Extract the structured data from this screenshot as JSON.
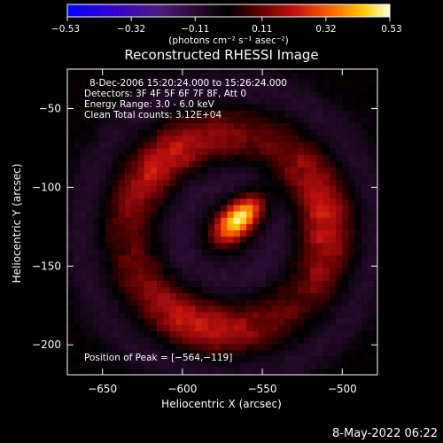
{
  "chart_data": {
    "type": "heatmap",
    "title": "Reconstructed RHESSI Image",
    "xlabel": "Heliocentric X (arcsec)",
    "ylabel": "Heliocentric Y (arcsec)",
    "xlim": [
      -672,
      -478
    ],
    "ylim": [
      -219,
      -25
    ],
    "x_ticks": [
      -650,
      -600,
      -550,
      -500
    ],
    "y_ticks": [
      -50,
      -100,
      -150,
      -200
    ],
    "x_tick_labels": [
      "−650",
      "−600",
      "−550",
      "−500"
    ],
    "y_tick_labels": [
      "−50",
      "−100",
      "−150",
      "−200"
    ],
    "colorbar": {
      "min": -0.53,
      "max": 0.53,
      "ticks": [
        -0.53,
        -0.32,
        -0.11,
        0.11,
        0.32,
        0.53
      ],
      "tick_labels": [
        "−0.53",
        "−0.32",
        "−0.11",
        "0.11",
        "0.32",
        "0.53"
      ],
      "units_label": "(photons cm⁻² s⁻¹ asec⁻²)"
    },
    "annotations": [
      "8-Dec-2006 15:20:24.000 to 15:26:24.000",
      "Detectors: 3F 4F 5F 6F 7F 8F, Att 0",
      "Energy Range: 3.0 - 6.0 keV",
      "Clean     Total counts: 3.12E+04"
    ],
    "peak_label": "Position of Peak = [−564,−119]",
    "peak_position": [
      -564,
      -119
    ],
    "source": {
      "center": [
        -564,
        -119
      ],
      "peak_value": 0.53
    },
    "ring": {
      "center": [
        -571,
        -128
      ],
      "radius": 60
    }
  },
  "footer": {
    "date": "8-May-2022 06:22"
  }
}
